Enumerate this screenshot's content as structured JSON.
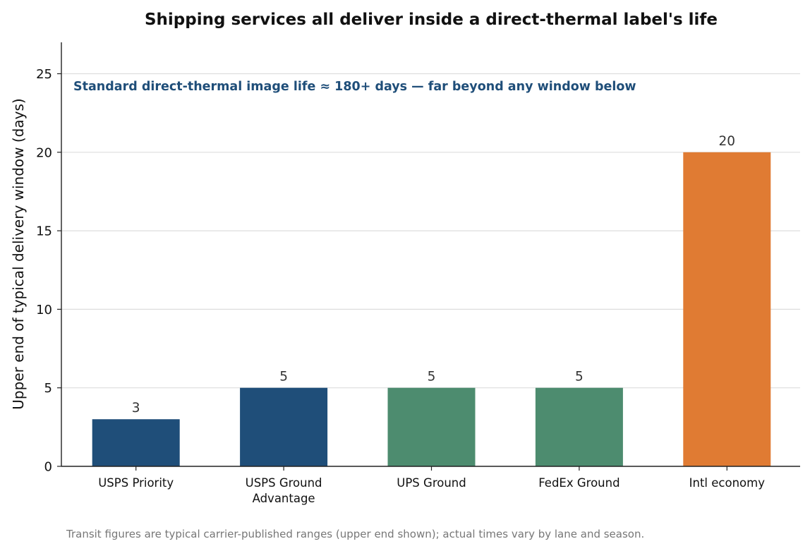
{
  "chart_data": {
    "type": "bar",
    "title": "Shipping services all deliver inside a direct-thermal label's life",
    "ylabel": "Upper end of typical delivery window (days)",
    "xlabel": "",
    "ylim": [
      0,
      27
    ],
    "yticks": [
      0,
      5,
      10,
      15,
      20,
      25
    ],
    "grid": "horizontal",
    "categories": [
      [
        "USPS Priority"
      ],
      [
        "USPS Ground",
        "Advantage"
      ],
      [
        "UPS Ground"
      ],
      [
        "FedEx Ground"
      ],
      [
        "Intl economy"
      ]
    ],
    "values": [
      3,
      5,
      5,
      5,
      20
    ],
    "data_labels": [
      "3",
      "5",
      "5",
      "5",
      "20"
    ],
    "colors": [
      "#1f4e79",
      "#1f4e79",
      "#4d8c6f",
      "#4d8c6f",
      "#e07b33"
    ],
    "annotation": {
      "text": "Standard direct-thermal image life ≈ 180+ days — far beyond any window below",
      "color": "#1f4e79"
    },
    "footnote": "Transit figures are typical carrier-published ranges (upper end shown); actual times vary by lane and season."
  }
}
